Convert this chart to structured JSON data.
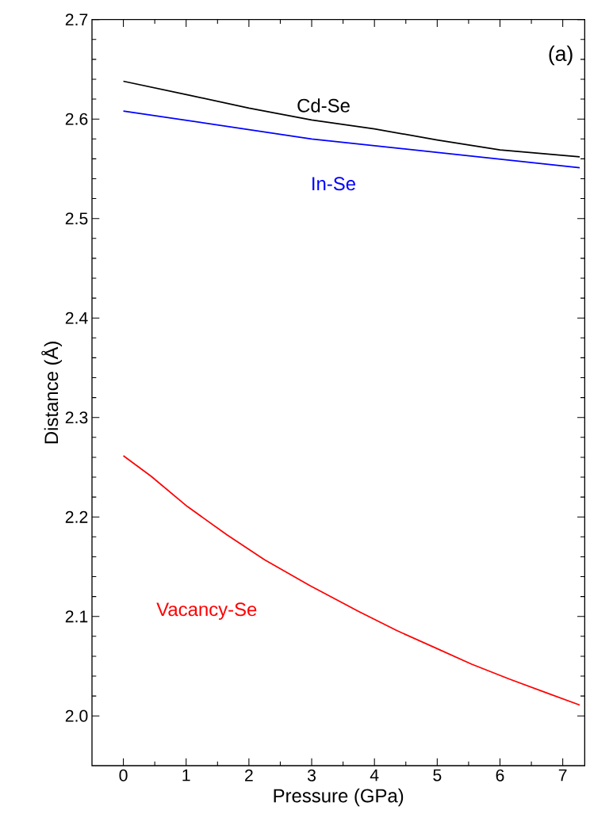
{
  "chart_data": {
    "type": "line",
    "xlabel": "Pressure (GPa)",
    "ylabel": "Distance (Å)",
    "xlim": [
      -0.5,
      7.35
    ],
    "ylim": [
      1.95,
      2.7
    ],
    "xticks": [
      0,
      1,
      2,
      3,
      4,
      5,
      6,
      7
    ],
    "yticks": [
      {
        "value": 2.0,
        "label": "2.0"
      },
      2.1,
      2.2,
      2.3,
      2.4,
      2.5,
      2.6,
      2.7
    ],
    "grid": false,
    "marker": "none",
    "line_style": "solid",
    "annotations": [
      "(a)"
    ],
    "series": [
      {
        "name": "Cd-Se",
        "color": "#000000",
        "x": [
          0,
          1.05,
          2.0,
          3.0,
          4.0,
          5.0,
          6.0,
          7.27
        ],
        "values": [
          2.638,
          2.624,
          2.611,
          2.599,
          2.59,
          2.579,
          2.569,
          2.562
        ]
      },
      {
        "name": "In-Se",
        "color": "#0000ff",
        "x": [
          0,
          3.0,
          7.27
        ],
        "values": [
          2.608,
          2.58,
          2.551
        ]
      },
      {
        "name": "Vacancy-Se",
        "color": "#ff0000",
        "x": [
          0,
          0.44,
          1.02,
          1.65,
          2.25,
          2.97,
          3.75,
          4.35,
          4.95,
          5.55,
          6.15,
          6.75,
          7.27
        ],
        "values": [
          2.2615,
          2.241,
          2.2105,
          2.182,
          2.157,
          2.131,
          2.105,
          2.086,
          2.069,
          2.052,
          2.037,
          2.023,
          2.011
        ]
      }
    ]
  }
}
